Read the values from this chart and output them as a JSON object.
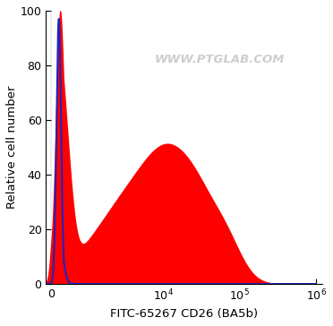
{
  "xlabel": "FITC-65267 CD26 (BA5b)",
  "ylabel": "Relative cell number",
  "ylim": [
    0,
    100
  ],
  "yticks": [
    0,
    20,
    40,
    60,
    80,
    100
  ],
  "xticks": [
    0,
    10000,
    100000,
    1000000
  ],
  "xticklabels": [
    "0",
    "10^4",
    "10^5",
    "10^6"
  ],
  "watermark": "WWW.PTGLAB.COM",
  "watermark_color": "#c8c8c8",
  "blue_line_color": "#2222bb",
  "red_fill_color": "#ff0000",
  "background_color": "#ffffff",
  "linthresh": 500,
  "linscale": 0.15
}
